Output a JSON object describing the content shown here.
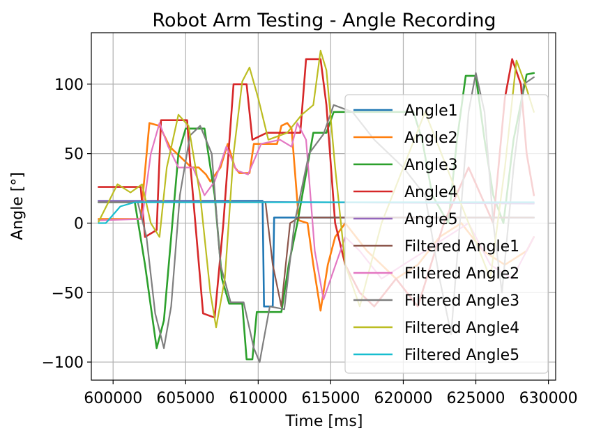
{
  "chart_data": {
    "type": "line",
    "title": "Robot Arm Testing - Angle Recording",
    "xlabel": "Time [ms]",
    "ylabel": "Angle [°]",
    "xlim": [
      598500,
      630500
    ],
    "ylim": [
      -113,
      137
    ],
    "xticks": [
      600000,
      605000,
      610000,
      615000,
      620000,
      625000,
      630000
    ],
    "xtick_labels": [
      "600000",
      "605000",
      "610000",
      "615000",
      "620000",
      "625000",
      "630000"
    ],
    "yticks": [
      -100,
      -50,
      0,
      50,
      100
    ],
    "ytick_labels": [
      "−100",
      "−50",
      "0",
      "50",
      "100"
    ],
    "grid": true,
    "legend_position": "right",
    "series": [
      {
        "name": "Angle1",
        "color": "#1f77b4",
        "width": 2.6,
        "points": [
          [
            599000,
            16
          ],
          [
            610300,
            16
          ],
          [
            610400,
            -60
          ],
          [
            611000,
            -60
          ],
          [
            611100,
            4
          ],
          [
            629000,
            4
          ]
        ]
      },
      {
        "name": "Angle2",
        "color": "#ff7f0e",
        "width": 2.6,
        "points": [
          [
            599000,
            3
          ],
          [
            601900,
            3
          ],
          [
            602500,
            72
          ],
          [
            603200,
            70
          ],
          [
            603900,
            55
          ],
          [
            605400,
            40
          ],
          [
            605900,
            40
          ],
          [
            606400,
            35
          ],
          [
            606700,
            30
          ],
          [
            607400,
            40
          ],
          [
            607900,
            57
          ],
          [
            608400,
            40
          ],
          [
            608700,
            36
          ],
          [
            609400,
            36
          ],
          [
            609700,
            57
          ],
          [
            611300,
            57
          ],
          [
            611600,
            70
          ],
          [
            612000,
            72
          ],
          [
            612300,
            68
          ],
          [
            612800,
            2
          ],
          [
            613400,
            0
          ],
          [
            613800,
            -30
          ],
          [
            614300,
            -63
          ],
          [
            614800,
            -30
          ],
          [
            615300,
            -10
          ],
          [
            616000,
            0
          ],
          [
            617500,
            -20
          ],
          [
            618500,
            -30
          ],
          [
            619500,
            -40
          ],
          [
            621000,
            -30
          ],
          [
            622500,
            -10
          ],
          [
            624000,
            0
          ],
          [
            625500,
            -20
          ],
          [
            627000,
            -30
          ],
          [
            628500,
            -20
          ],
          [
            629000,
            -10
          ]
        ]
      },
      {
        "name": "Angle3",
        "color": "#2ca02c",
        "width": 2.6,
        "points": [
          [
            599000,
            15
          ],
          [
            601500,
            15
          ],
          [
            602200,
            -30
          ],
          [
            602800,
            -75
          ],
          [
            603000,
            -90
          ],
          [
            603500,
            -70
          ],
          [
            604000,
            -10
          ],
          [
            604500,
            50
          ],
          [
            605000,
            68
          ],
          [
            606300,
            68
          ],
          [
            607000,
            20
          ],
          [
            607500,
            -40
          ],
          [
            608000,
            -58
          ],
          [
            608900,
            -58
          ],
          [
            609200,
            -98
          ],
          [
            609600,
            -98
          ],
          [
            609900,
            -64
          ],
          [
            611600,
            -64
          ],
          [
            612100,
            -30
          ],
          [
            612700,
            0
          ],
          [
            613800,
            65
          ],
          [
            614700,
            65
          ],
          [
            615200,
            80
          ],
          [
            620700,
            80
          ],
          [
            621300,
            60
          ],
          [
            622000,
            20
          ],
          [
            623100,
            0
          ],
          [
            623700,
            60
          ],
          [
            624300,
            106
          ],
          [
            625000,
            106
          ],
          [
            625600,
            60
          ],
          [
            626200,
            20
          ],
          [
            626900,
            0
          ],
          [
            627600,
            60
          ],
          [
            628500,
            107
          ],
          [
            629000,
            108
          ]
        ]
      },
      {
        "name": "Angle4",
        "color": "#d62728",
        "width": 2.6,
        "points": [
          [
            599000,
            26
          ],
          [
            601900,
            26
          ],
          [
            602200,
            -10
          ],
          [
            603000,
            -5
          ],
          [
            603300,
            74
          ],
          [
            605100,
            74
          ],
          [
            605300,
            45
          ],
          [
            606200,
            -65
          ],
          [
            607000,
            -68
          ],
          [
            607600,
            0
          ],
          [
            608300,
            100
          ],
          [
            609200,
            100
          ],
          [
            609600,
            60
          ],
          [
            610600,
            65
          ],
          [
            612900,
            65
          ],
          [
            613300,
            118
          ],
          [
            614300,
            118
          ],
          [
            614700,
            85
          ],
          [
            615300,
            0
          ],
          [
            616000,
            -30
          ],
          [
            617000,
            -50
          ],
          [
            618000,
            -60
          ],
          [
            619500,
            -40
          ],
          [
            621000,
            -60
          ],
          [
            622800,
            0
          ],
          [
            624500,
            40
          ],
          [
            626200,
            0
          ],
          [
            627000,
            90
          ],
          [
            627500,
            118
          ],
          [
            628100,
            100
          ],
          [
            628500,
            50
          ],
          [
            629000,
            20
          ]
        ]
      },
      {
        "name": "Angle5",
        "color": "#9467bd",
        "width": 2.2,
        "points": [
          [
            599000,
            16
          ],
          [
            629000,
            14
          ]
        ]
      },
      {
        "name": "Filtered Angle1",
        "color": "#8c564b",
        "width": 2.2,
        "points": [
          [
            599000,
            15
          ],
          [
            610500,
            15
          ],
          [
            611000,
            -30
          ],
          [
            611600,
            -60
          ],
          [
            612200,
            0
          ],
          [
            612800,
            4
          ],
          [
            629000,
            4
          ]
        ]
      },
      {
        "name": "Filtered Angle2",
        "color": "#e377c2",
        "width": 2.2,
        "points": [
          [
            599000,
            2
          ],
          [
            602000,
            3
          ],
          [
            602600,
            50
          ],
          [
            603200,
            72
          ],
          [
            603800,
            55
          ],
          [
            604500,
            40
          ],
          [
            605500,
            40
          ],
          [
            606300,
            20
          ],
          [
            607000,
            30
          ],
          [
            607800,
            55
          ],
          [
            608500,
            38
          ],
          [
            609300,
            35
          ],
          [
            610200,
            57
          ],
          [
            611500,
            60
          ],
          [
            612300,
            55
          ],
          [
            612700,
            72
          ],
          [
            613300,
            60
          ],
          [
            613900,
            -20
          ],
          [
            614500,
            -55
          ],
          [
            615000,
            -40
          ],
          [
            616000,
            -10
          ],
          [
            617000,
            -20
          ],
          [
            618500,
            -40
          ],
          [
            620000,
            -30
          ],
          [
            621500,
            -20
          ],
          [
            623000,
            -10
          ],
          [
            624500,
            0
          ],
          [
            626000,
            -30
          ],
          [
            627500,
            -40
          ],
          [
            629000,
            -10
          ]
        ]
      },
      {
        "name": "Filtered Angle3",
        "color": "#7f7f7f",
        "width": 2.2,
        "points": [
          [
            599000,
            15
          ],
          [
            601700,
            15
          ],
          [
            602300,
            -10
          ],
          [
            602900,
            -65
          ],
          [
            603500,
            -90
          ],
          [
            604000,
            -60
          ],
          [
            604600,
            20
          ],
          [
            605300,
            63
          ],
          [
            606000,
            70
          ],
          [
            606800,
            50
          ],
          [
            607400,
            -30
          ],
          [
            608100,
            -57
          ],
          [
            609000,
            -57
          ],
          [
            609700,
            -90
          ],
          [
            610100,
            -100
          ],
          [
            610800,
            -60
          ],
          [
            611800,
            -62
          ],
          [
            612500,
            0
          ],
          [
            613500,
            50
          ],
          [
            614500,
            64
          ],
          [
            615200,
            85
          ],
          [
            616500,
            80
          ],
          [
            618000,
            60
          ],
          [
            620000,
            40
          ],
          [
            621500,
            20
          ],
          [
            622500,
            -40
          ],
          [
            623300,
            -80
          ],
          [
            623900,
            0
          ],
          [
            624500,
            80
          ],
          [
            625000,
            108
          ],
          [
            625600,
            80
          ],
          [
            626200,
            0
          ],
          [
            626800,
            -50
          ],
          [
            627600,
            40
          ],
          [
            628300,
            100
          ],
          [
            629000,
            105
          ]
        ]
      },
      {
        "name": "Filtered Angle4",
        "color": "#bcbd22",
        "width": 2.2,
        "points": [
          [
            599000,
            1
          ],
          [
            600300,
            28
          ],
          [
            601200,
            22
          ],
          [
            602000,
            28
          ],
          [
            602600,
            0
          ],
          [
            603200,
            -10
          ],
          [
            603700,
            40
          ],
          [
            604500,
            78
          ],
          [
            605200,
            70
          ],
          [
            606000,
            20
          ],
          [
            606700,
            -50
          ],
          [
            607100,
            -75
          ],
          [
            607700,
            -40
          ],
          [
            608300,
            50
          ],
          [
            608900,
            102
          ],
          [
            609400,
            112
          ],
          [
            610000,
            90
          ],
          [
            610700,
            60
          ],
          [
            612000,
            65
          ],
          [
            613000,
            78
          ],
          [
            613800,
            85
          ],
          [
            614300,
            124
          ],
          [
            614700,
            110
          ],
          [
            615300,
            40
          ],
          [
            616000,
            -30
          ],
          [
            617000,
            -60
          ],
          [
            618500,
            0
          ],
          [
            620000,
            40
          ],
          [
            621500,
            80
          ],
          [
            623000,
            40
          ],
          [
            624500,
            0
          ],
          [
            626000,
            -40
          ],
          [
            627000,
            40
          ],
          [
            627800,
            117
          ],
          [
            628400,
            100
          ],
          [
            629000,
            80
          ]
        ]
      },
      {
        "name": "Filtered Angle5",
        "color": "#17becf",
        "width": 2.2,
        "points": [
          [
            599000,
            0
          ],
          [
            599500,
            0
          ],
          [
            600500,
            12
          ],
          [
            601500,
            15
          ],
          [
            629000,
            15
          ]
        ]
      }
    ]
  }
}
